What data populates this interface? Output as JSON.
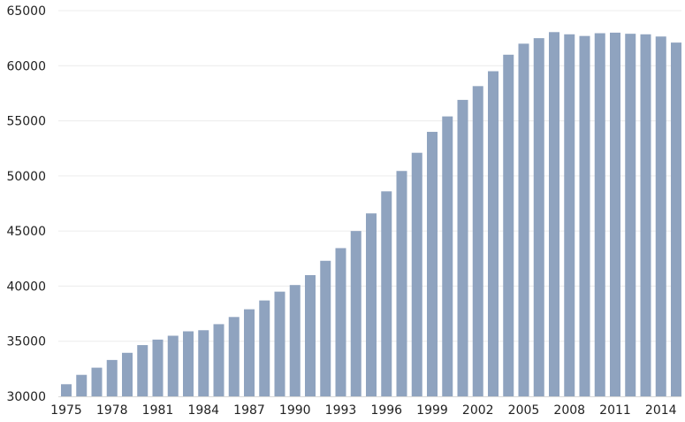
{
  "chart_data": {
    "type": "bar",
    "title": "",
    "xlabel": "",
    "ylabel": "",
    "ylim": [
      30000,
      65000
    ],
    "yticks": [
      30000,
      35000,
      40000,
      45000,
      50000,
      55000,
      60000,
      65000
    ],
    "x_tick_labels": [
      "1975",
      "1978",
      "1981",
      "1984",
      "1987",
      "1990",
      "1993",
      "1996",
      "1999",
      "2002",
      "2005",
      "2008",
      "2011",
      "2014"
    ],
    "grid": true,
    "legend": "none",
    "bar_color": "#8fa3bf",
    "categories": [
      "1975",
      "1976",
      "1977",
      "1978",
      "1979",
      "1980",
      "1981",
      "1982",
      "1983",
      "1984",
      "1985",
      "1986",
      "1987",
      "1988",
      "1989",
      "1990",
      "1991",
      "1992",
      "1993",
      "1994",
      "1995",
      "1996",
      "1997",
      "1998",
      "1999",
      "2000",
      "2001",
      "2002",
      "2003",
      "2004",
      "2005",
      "2006",
      "2007",
      "2008",
      "2009",
      "2010",
      "2011",
      "2012",
      "2013",
      "2014",
      "2015"
    ],
    "values": [
      31100,
      31950,
      32600,
      33300,
      33950,
      34650,
      35150,
      35500,
      35900,
      36000,
      36550,
      37200,
      37900,
      38700,
      39500,
      40100,
      41000,
      42300,
      43450,
      45000,
      46600,
      48600,
      50450,
      52100,
      54000,
      55400,
      56900,
      58150,
      59500,
      61000,
      62000,
      62500,
      63050,
      62850,
      62700,
      62950,
      63000,
      62900,
      62850,
      62650,
      62100
    ]
  }
}
